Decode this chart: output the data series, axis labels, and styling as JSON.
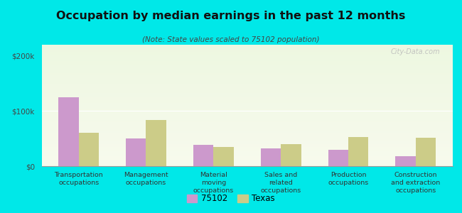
{
  "title": "Occupation by median earnings in the past 12 months",
  "subtitle": "(Note: State values scaled to 75102 population)",
  "categories": [
    "Transportation\noccupations",
    "Management\noccupations",
    "Material\nmoving\noccupations",
    "Sales and\nrelated\noccupations",
    "Production\noccupations",
    "Construction\nand extraction\noccupations"
  ],
  "values_75102": [
    125000,
    50000,
    38000,
    32000,
    30000,
    18000
  ],
  "values_texas": [
    60000,
    83000,
    35000,
    40000,
    53000,
    52000
  ],
  "color_75102": "#cc99cc",
  "color_texas": "#cccc88",
  "ylim": [
    0,
    220000
  ],
  "yticks": [
    0,
    100000,
    200000
  ],
  "ytick_labels": [
    "$0",
    "$100k",
    "$200k"
  ],
  "outer_bg": "#00e8e8",
  "legend_labels": [
    "75102",
    "Texas"
  ],
  "watermark": "City-Data.com"
}
